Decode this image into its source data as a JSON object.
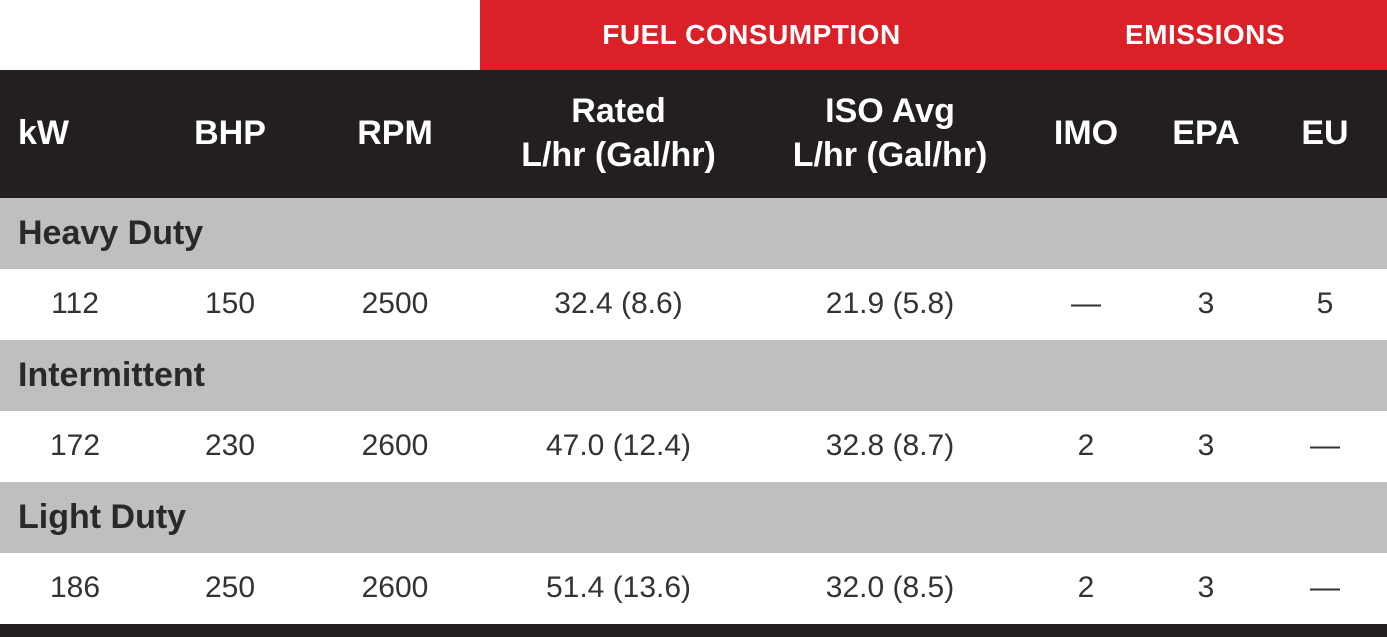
{
  "table": {
    "banner": {
      "fuel_consumption": "FUEL CONSUMPTION",
      "emissions": "EMISSIONS"
    },
    "headers": {
      "kw": "kW",
      "bhp": "BHP",
      "rpm": "RPM",
      "rated_line1": "Rated",
      "rated_line2": "L/hr (Gal/hr)",
      "iso_line1": "ISO Avg",
      "iso_line2": "L/hr (Gal/hr)",
      "imo": "IMO",
      "epa": "EPA",
      "eu": "EU"
    },
    "sections": [
      {
        "name": "Heavy Duty",
        "row": {
          "kw": "112",
          "bhp": "150",
          "rpm": "2500",
          "rated": "32.4 (8.6)",
          "iso": "21.9 (5.8)",
          "imo": "—",
          "epa": "3",
          "eu": "5"
        }
      },
      {
        "name": "Intermittent",
        "row": {
          "kw": "172",
          "bhp": "230",
          "rpm": "2600",
          "rated": "47.0 (12.4)",
          "iso": "32.8 (8.7)",
          "imo": "2",
          "epa": "3",
          "eu": "—"
        }
      },
      {
        "name": "Light Duty",
        "row": {
          "kw": "186",
          "bhp": "250",
          "rpm": "2600",
          "rated": "51.4 (13.6)",
          "iso": "32.0 (8.5)",
          "imo": "2",
          "epa": "3",
          "eu": "—"
        }
      }
    ],
    "colors": {
      "banner_red": "#da2128",
      "header_black": "#231f20",
      "section_gray": "#bdbfc1",
      "text_dark": "#2b282a"
    }
  }
}
